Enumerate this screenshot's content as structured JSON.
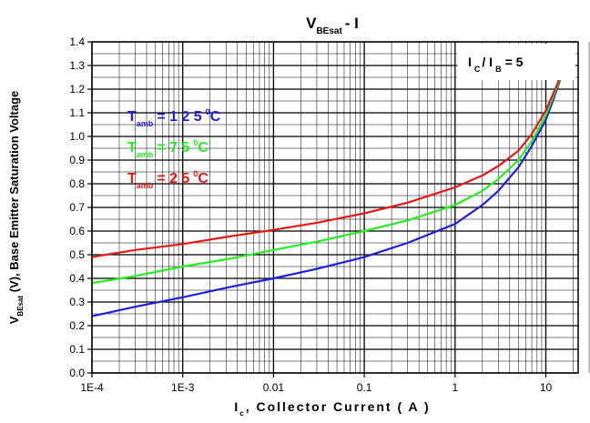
{
  "chart_data": {
    "type": "line",
    "title_main": "V",
    "title_sub": "BEsat",
    "title_rest": "- I",
    "xlabel_main": "I",
    "xlabel_sub": "c",
    "xlabel_rest": ", Collector Current ( A )",
    "ylabel_main": "V",
    "ylabel_sub": "BEsat",
    "ylabel_rest": " (V), Base Emitter Saturation Voltage",
    "x_scale": "log",
    "xlim": [
      0.0001,
      30
    ],
    "ylim": [
      0.0,
      1.4
    ],
    "x_ticks": [
      {
        "value": 0.0001,
        "label": "1E-4"
      },
      {
        "value": 0.001,
        "label": "1E-3"
      },
      {
        "value": 0.01,
        "label": "0.01"
      },
      {
        "value": 0.1,
        "label": "0.1"
      },
      {
        "value": 1,
        "label": "1"
      },
      {
        "value": 10,
        "label": "10"
      }
    ],
    "y_ticks": [
      {
        "value": 0.0,
        "label": "0.0"
      },
      {
        "value": 0.1,
        "label": "0.1"
      },
      {
        "value": 0.2,
        "label": "0.2"
      },
      {
        "value": 0.3,
        "label": "0.3"
      },
      {
        "value": 0.4,
        "label": "0.4"
      },
      {
        "value": 0.5,
        "label": "0.5"
      },
      {
        "value": 0.6,
        "label": "0.6"
      },
      {
        "value": 0.7,
        "label": "0.7"
      },
      {
        "value": 0.8,
        "label": "0.8"
      },
      {
        "value": 0.9,
        "label": "0.9"
      },
      {
        "value": 1.0,
        "label": "1.0"
      },
      {
        "value": 1.1,
        "label": "1.1"
      },
      {
        "value": 1.2,
        "label": "1.2"
      },
      {
        "value": 1.3,
        "label": "1.3"
      },
      {
        "value": 1.4,
        "label": "1.4"
      }
    ],
    "grid": true,
    "annotation": {
      "main": "I",
      "sub1": "C",
      "mid": "/ I",
      "sub2": "B",
      "rest": "= 5"
    },
    "legend": [
      {
        "main": "T",
        "sub": "amb",
        "rest": "= 1 2 5",
        "sup": "0",
        "unit": "C",
        "color": "#1f1fdc"
      },
      {
        "main": "T",
        "sub": "amb",
        "rest": "= 7 5",
        "sup": "0",
        "unit": "C",
        "color": "#22ee22"
      },
      {
        "main": "T",
        "sub": "amb",
        "rest": "= 2 5",
        "sup": "0",
        "unit": "C",
        "color": "#e81818"
      }
    ],
    "series": [
      {
        "color": "#1f1fdc",
        "x": [
          0.0001,
          0.0003,
          0.001,
          0.003,
          0.01,
          0.03,
          0.1,
          0.3,
          1,
          2,
          3,
          5,
          7,
          10,
          13,
          15
        ],
        "y": [
          0.24,
          0.28,
          0.32,
          0.36,
          0.4,
          0.44,
          0.49,
          0.55,
          0.63,
          0.71,
          0.77,
          0.87,
          0.96,
          1.07,
          1.19,
          1.26
        ]
      },
      {
        "color": "#22ee22",
        "x": [
          0.0001,
          0.0003,
          0.001,
          0.003,
          0.01,
          0.03,
          0.1,
          0.3,
          1,
          2,
          3,
          5,
          7,
          10,
          13,
          15
        ],
        "y": [
          0.38,
          0.41,
          0.45,
          0.48,
          0.52,
          0.555,
          0.6,
          0.645,
          0.71,
          0.77,
          0.82,
          0.9,
          0.98,
          1.09,
          1.2,
          1.26
        ]
      },
      {
        "color": "#e81818",
        "x": [
          0.0001,
          0.0003,
          0.001,
          0.003,
          0.01,
          0.03,
          0.1,
          0.3,
          1,
          2,
          3,
          5,
          7,
          10,
          13,
          15
        ],
        "y": [
          0.49,
          0.52,
          0.545,
          0.575,
          0.605,
          0.635,
          0.675,
          0.72,
          0.785,
          0.835,
          0.875,
          0.94,
          1.01,
          1.11,
          1.21,
          1.27
        ]
      }
    ]
  }
}
